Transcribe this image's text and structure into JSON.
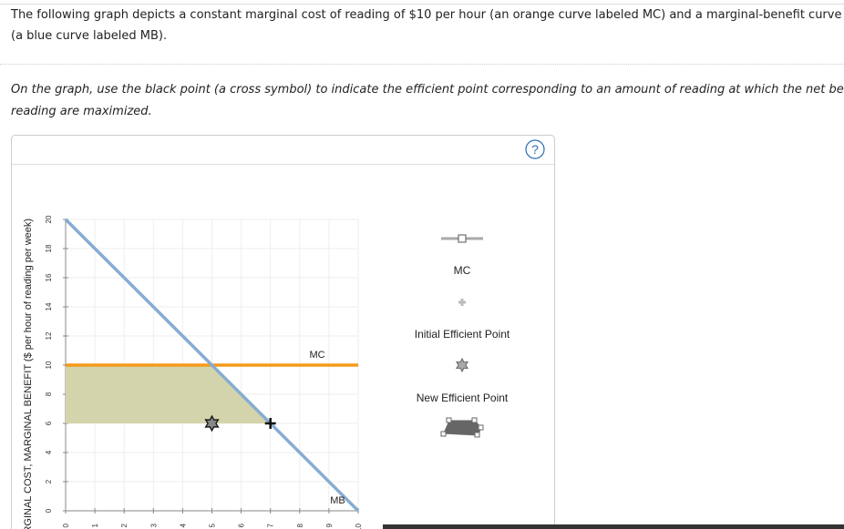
{
  "question": {
    "lines": [
      "The following graph depicts a constant marginal cost of reading of $10 per hour (an orange curve labeled MC) and a marginal-benefit curve for reading",
      "(a blue curve labeled MB)."
    ]
  },
  "instruction": {
    "lines": [
      "On the graph, use the black point (a cross symbol) to indicate the efficient point corresponding to an amount of reading at which the net benefits from",
      "reading are maximized."
    ]
  },
  "help": "?",
  "legend": [
    "MC",
    "Initial Efficient Point",
    "New Efficient Point"
  ],
  "chart_data": {
    "type": "line",
    "ylabel": "MARGINAL COST, MARGINAL BENEFIT ($ per hour of reading per week)",
    "xlim": [
      0,
      10
    ],
    "ylim": [
      0,
      20
    ],
    "xticks": [
      0,
      1,
      2,
      3,
      4,
      5,
      6,
      7,
      8,
      9,
      10
    ],
    "yticks": [
      0,
      2,
      4,
      6,
      8,
      10,
      12,
      14,
      16,
      18,
      20
    ],
    "grid": true,
    "series": [
      {
        "name": "MC",
        "color": "#f59a1b",
        "x": [
          0,
          10
        ],
        "values": [
          10,
          10
        ]
      },
      {
        "name": "MB",
        "color": "#86acd2",
        "x": [
          0,
          10
        ],
        "values": [
          20,
          0
        ]
      }
    ],
    "shaded_area": {
      "color": "#d3d4ab",
      "x": [
        0,
        5,
        7,
        0
      ],
      "values": [
        10,
        10,
        6,
        6
      ]
    },
    "markers": [
      {
        "shape": "star",
        "x": 5,
        "y": 6
      },
      {
        "shape": "cross",
        "x": 7,
        "y": 6
      }
    ]
  }
}
